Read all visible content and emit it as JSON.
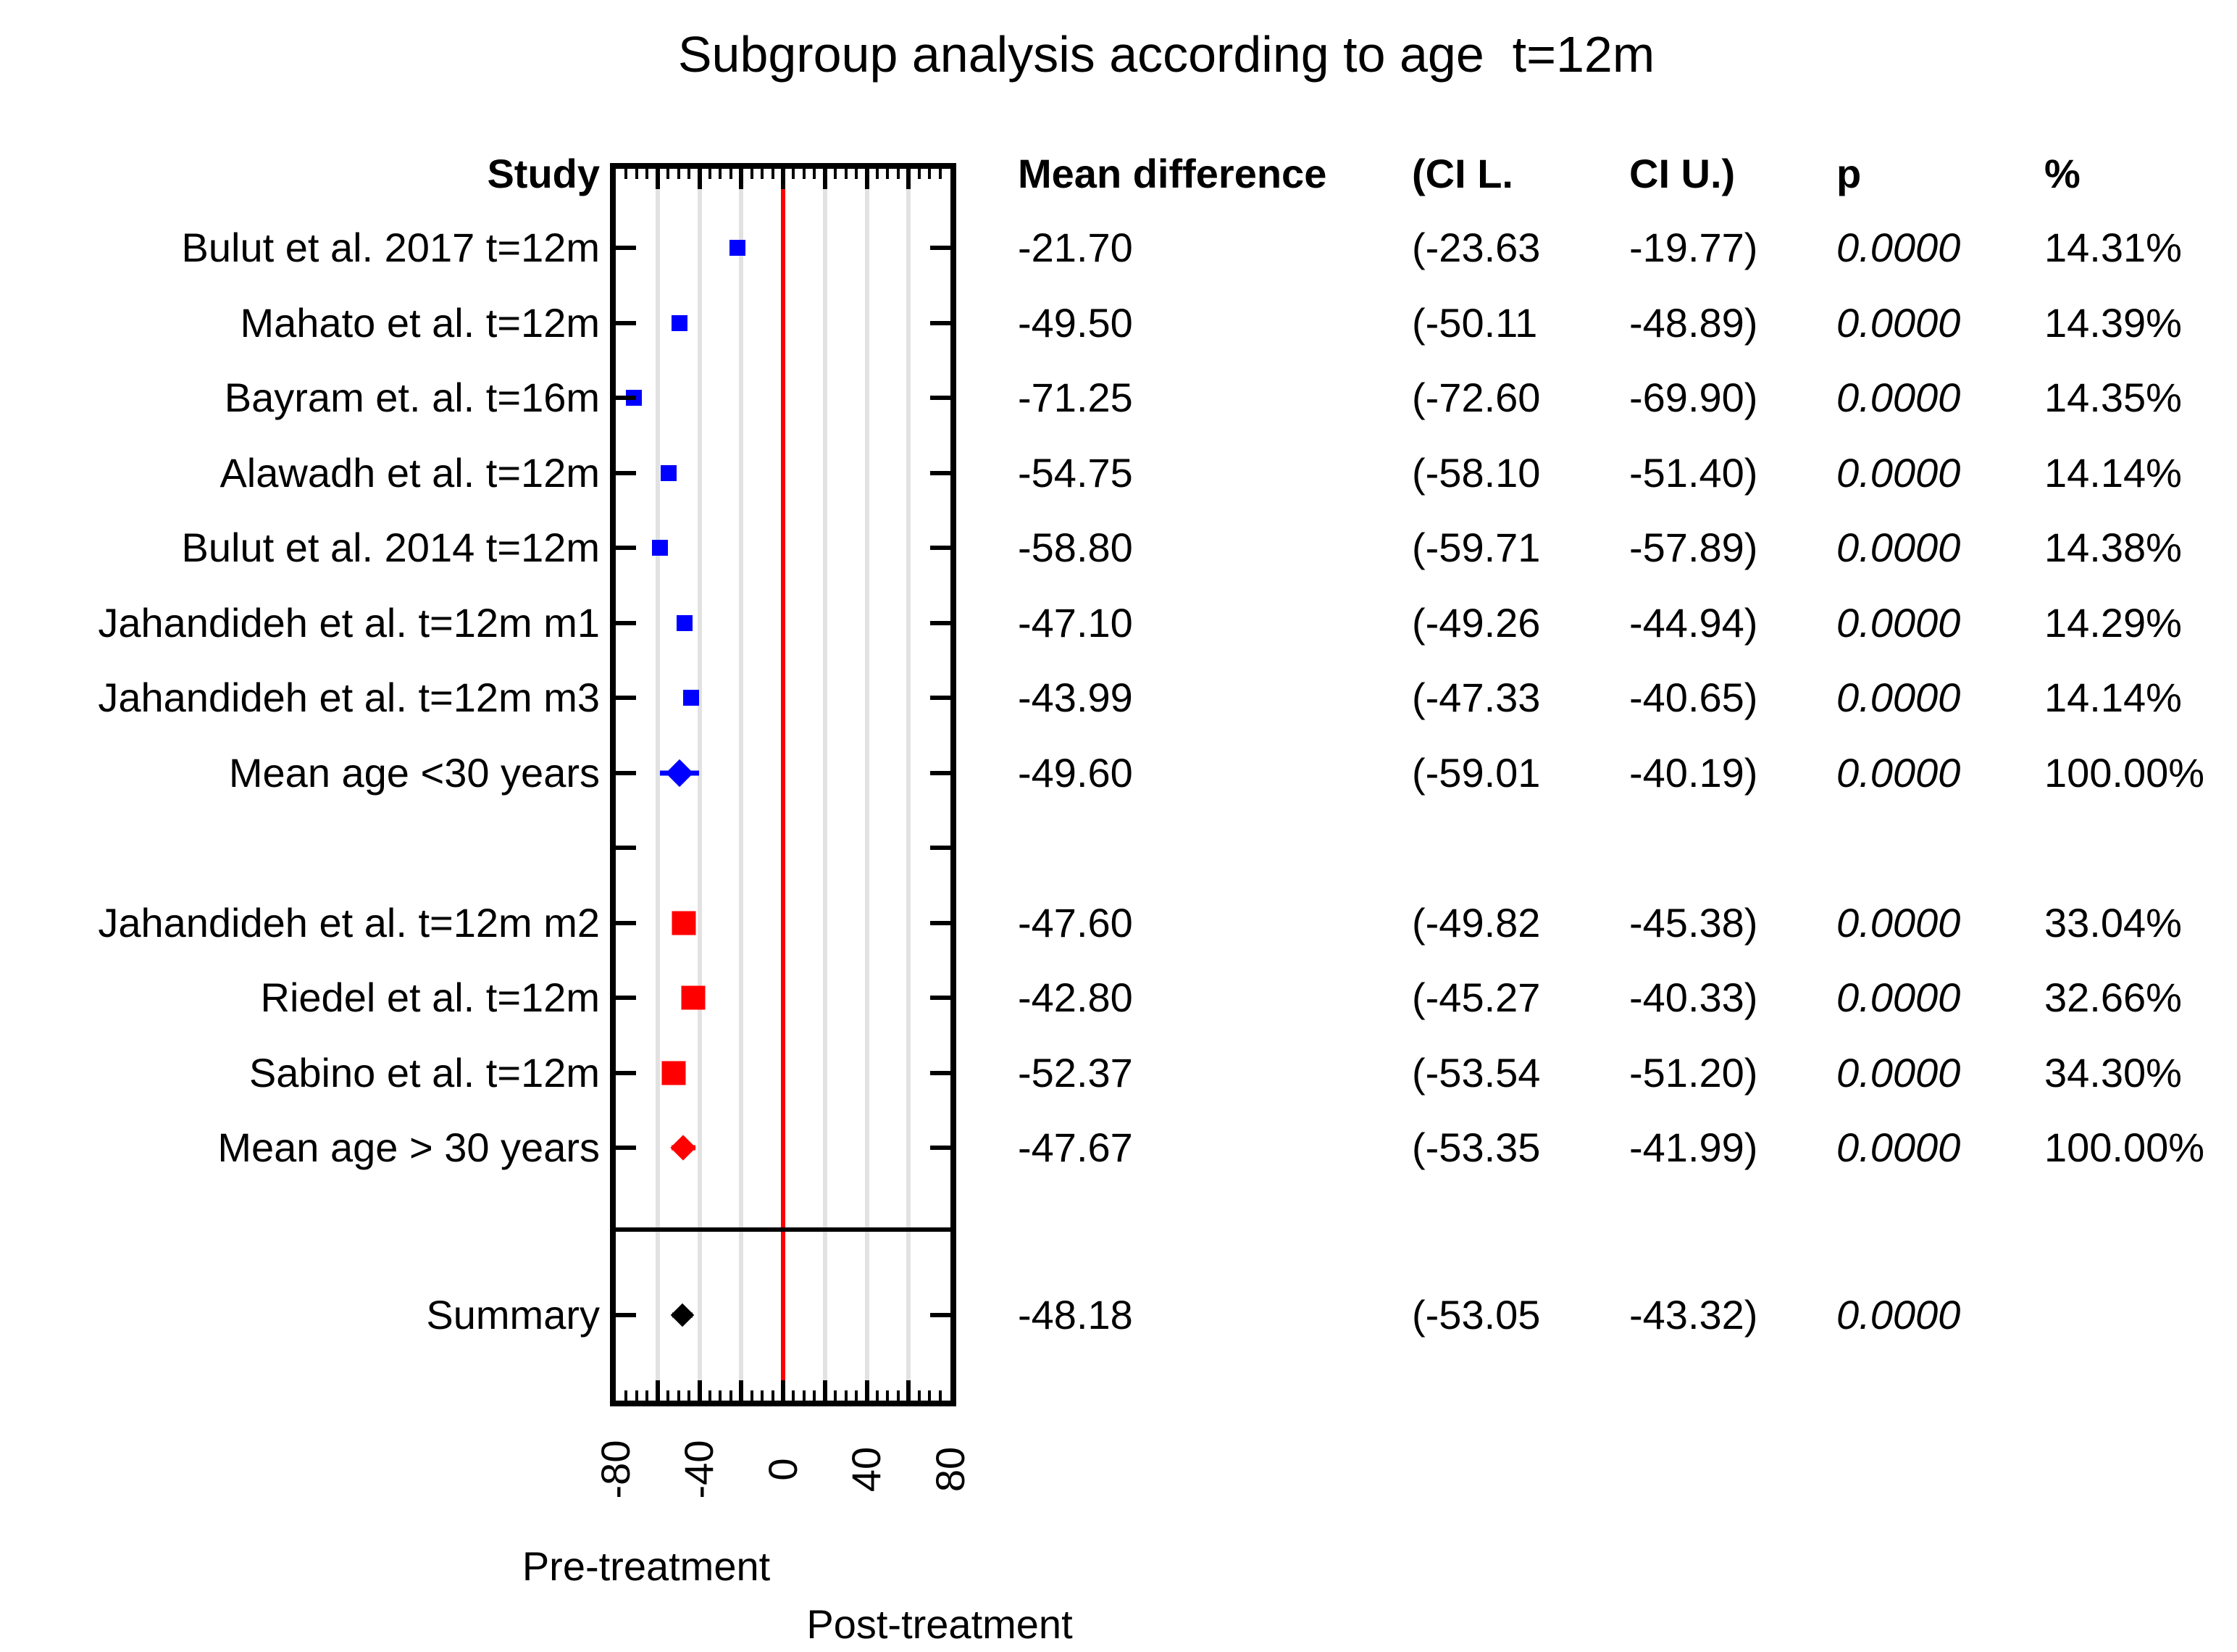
{
  "title": "Subgroup analysis according to age  t=12m",
  "columns": {
    "study": "Study",
    "mean_difference": "Mean difference",
    "ci_lower": "(CI L.",
    "ci_upper": "CI U.)",
    "p": "p",
    "weight": "%"
  },
  "axis": {
    "min": -80,
    "max": 80,
    "grid_step": 20,
    "minor_step": 5,
    "tick_labels": [
      "-80",
      "-40",
      "0",
      "40",
      "80"
    ],
    "tick_values": [
      -80,
      -40,
      0,
      40,
      80
    ],
    "grid_color": "#e2e2e2",
    "zero_line_color": "#ff0000",
    "label_pre": "Pre-treatment",
    "label_post": "Post-treatment"
  },
  "colors": {
    "group1": "#0000ff",
    "group2": "#ff0000",
    "summary": "#000000",
    "frame": "#000000"
  },
  "chart_data": {
    "type": "forest",
    "title": "Subgroup analysis according to age  t=12m",
    "xlim": [
      -80,
      80
    ],
    "rows": [
      {
        "slot": 0,
        "study": "Bulut et al. 2017 t=12m",
        "mean": -21.7,
        "ci_l": -23.63,
        "ci_u": -19.77,
        "mean_text": "-21.70",
        "ci_l_text": "(-23.63",
        "ci_u_text": "-19.77)",
        "p": "0.0000",
        "weight": "14.31%",
        "marker": "square",
        "size": 22,
        "color": "#0000ff"
      },
      {
        "slot": 1,
        "study": "Mahato et al. t=12m",
        "mean": -49.5,
        "ci_l": -50.11,
        "ci_u": -48.89,
        "mean_text": "-49.50",
        "ci_l_text": "(-50.11",
        "ci_u_text": "-48.89)",
        "p": "0.0000",
        "weight": "14.39%",
        "marker": "square",
        "size": 22,
        "color": "#0000ff"
      },
      {
        "slot": 2,
        "study": "Bayram et. al. t=16m",
        "mean": -71.25,
        "ci_l": -72.6,
        "ci_u": -69.9,
        "mean_text": "-71.25",
        "ci_l_text": "(-72.60",
        "ci_u_text": "-69.90)",
        "p": "0.0000",
        "weight": "14.35%",
        "marker": "square",
        "size": 22,
        "color": "#0000ff"
      },
      {
        "slot": 3,
        "study": "Alawadh et al. t=12m",
        "mean": -54.75,
        "ci_l": -58.1,
        "ci_u": -51.4,
        "mean_text": "-54.75",
        "ci_l_text": "(-58.10",
        "ci_u_text": "-51.40)",
        "p": "0.0000",
        "weight": "14.14%",
        "marker": "square",
        "size": 22,
        "color": "#0000ff"
      },
      {
        "slot": 4,
        "study": "Bulut et al. 2014 t=12m",
        "mean": -58.8,
        "ci_l": -59.71,
        "ci_u": -57.89,
        "mean_text": "-58.80",
        "ci_l_text": "(-59.71",
        "ci_u_text": "-57.89)",
        "p": "0.0000",
        "weight": "14.38%",
        "marker": "square",
        "size": 22,
        "color": "#0000ff"
      },
      {
        "slot": 5,
        "study": "Jahandideh et al. t=12m m1",
        "mean": -47.1,
        "ci_l": -49.26,
        "ci_u": -44.94,
        "mean_text": "-47.10",
        "ci_l_text": "(-49.26",
        "ci_u_text": "-44.94)",
        "p": "0.0000",
        "weight": "14.29%",
        "marker": "square",
        "size": 22,
        "color": "#0000ff"
      },
      {
        "slot": 6,
        "study": "Jahandideh et al. t=12m m3",
        "mean": -43.99,
        "ci_l": -47.33,
        "ci_u": -40.65,
        "mean_text": "-43.99",
        "ci_l_text": "(-47.33",
        "ci_u_text": "-40.65)",
        "p": "0.0000",
        "weight": "14.14%",
        "marker": "square",
        "size": 22,
        "color": "#0000ff"
      },
      {
        "slot": 7,
        "study": "Mean age <30 years",
        "mean": -49.6,
        "ci_l": -59.01,
        "ci_u": -40.19,
        "mean_text": "-49.60",
        "ci_l_text": "(-59.01",
        "ci_u_text": "-40.19)",
        "p": "0.0000",
        "weight": "100.00%",
        "marker": "diamond",
        "size": 27,
        "color": "#0000ff"
      },
      {
        "slot": 9,
        "study": "Jahandideh et al. t=12m m2",
        "mean": -47.6,
        "ci_l": -49.82,
        "ci_u": -45.38,
        "mean_text": "-47.60",
        "ci_l_text": "(-49.82",
        "ci_u_text": "-45.38)",
        "p": "0.0000",
        "weight": "33.04%",
        "marker": "square",
        "size": 33,
        "color": "#ff0000"
      },
      {
        "slot": 10,
        "study": "Riedel et al. t=12m",
        "mean": -42.8,
        "ci_l": -45.27,
        "ci_u": -40.33,
        "mean_text": "-42.80",
        "ci_l_text": "(-45.27",
        "ci_u_text": "-40.33)",
        "p": "0.0000",
        "weight": "32.66%",
        "marker": "square",
        "size": 33,
        "color": "#ff0000"
      },
      {
        "slot": 11,
        "study": "Sabino et al. t=12m",
        "mean": -52.37,
        "ci_l": -53.54,
        "ci_u": -51.2,
        "mean_text": "-52.37",
        "ci_l_text": "(-53.54",
        "ci_u_text": "-51.20)",
        "p": "0.0000",
        "weight": "34.30%",
        "marker": "square",
        "size": 33,
        "color": "#ff0000"
      },
      {
        "slot": 12,
        "study": "Mean age > 30 years",
        "mean": -47.67,
        "ci_l": -53.35,
        "ci_u": -41.99,
        "mean_text": "-47.67",
        "ci_l_text": "(-53.35",
        "ci_u_text": "-41.99)",
        "p": "0.0000",
        "weight": "100.00%",
        "marker": "diamond",
        "size": 25,
        "color": "#ff0000"
      },
      {
        "slot": 14,
        "study": "Summary",
        "mean": -48.18,
        "ci_l": -53.05,
        "ci_u": -43.32,
        "mean_text": "-48.18",
        "ci_l_text": "(-53.05",
        "ci_u_text": "-43.32)",
        "p": "0.0000",
        "weight": "",
        "marker": "diamond",
        "size": 23,
        "color": "#000000"
      }
    ]
  }
}
